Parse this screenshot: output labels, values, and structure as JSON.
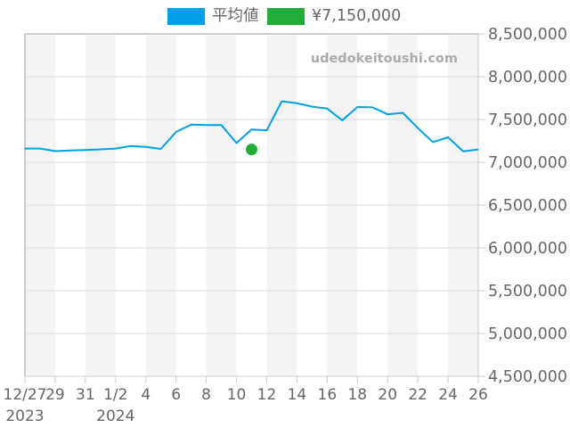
{
  "legend": {
    "items": [
      {
        "label": "平均値",
        "color": "#00A0E9"
      },
      {
        "label": "¥7,150,000",
        "color": "#22AC38"
      }
    ]
  },
  "watermark": "udedokeitoushi.com",
  "chart_data": {
    "type": "line",
    "title": "",
    "xlabel": "",
    "ylabel": "",
    "x": [
      "12/27",
      "12/28",
      "12/29",
      "12/30",
      "12/31",
      "1/1",
      "1/2",
      "1/3",
      "1/4",
      "1/5",
      "1/6",
      "1/7",
      "1/8",
      "1/9",
      "1/10",
      "1/11",
      "1/12",
      "1/13",
      "1/14",
      "1/15",
      "1/16",
      "1/17",
      "1/18",
      "1/19",
      "1/20",
      "1/21",
      "1/22",
      "1/23",
      "1/24",
      "1/25",
      "1/26"
    ],
    "x_tick_labels": [
      {
        "index": 0,
        "lines": [
          "12/27",
          "2023"
        ]
      },
      {
        "index": 2,
        "lines": [
          "29"
        ]
      },
      {
        "index": 4,
        "lines": [
          "31"
        ]
      },
      {
        "index": 6,
        "lines": [
          "1/2",
          "2024"
        ]
      },
      {
        "index": 8,
        "lines": [
          "4"
        ]
      },
      {
        "index": 10,
        "lines": [
          "6"
        ]
      },
      {
        "index": 12,
        "lines": [
          "8"
        ]
      },
      {
        "index": 14,
        "lines": [
          "10"
        ]
      },
      {
        "index": 16,
        "lines": [
          "12"
        ]
      },
      {
        "index": 18,
        "lines": [
          "14"
        ]
      },
      {
        "index": 20,
        "lines": [
          "16"
        ]
      },
      {
        "index": 22,
        "lines": [
          "18"
        ]
      },
      {
        "index": 24,
        "lines": [
          "20"
        ]
      },
      {
        "index": 26,
        "lines": [
          "22"
        ]
      },
      {
        "index": 28,
        "lines": [
          "24"
        ]
      },
      {
        "index": 30,
        "lines": [
          "26"
        ]
      }
    ],
    "series": [
      {
        "name": "平均値",
        "type": "line",
        "color": "#00A0E9",
        "values": [
          7160000,
          7160000,
          7130000,
          7137000,
          7144000,
          7151000,
          7160000,
          7190000,
          7180000,
          7156000,
          7355000,
          7440000,
          7434000,
          7434000,
          7225000,
          7382000,
          7374000,
          7712000,
          7690000,
          7650000,
          7628000,
          7490000,
          7646000,
          7642000,
          7560000,
          7578000,
          7400000,
          7236000,
          7292000,
          7128000,
          7150000
        ]
      },
      {
        "name": "¥7,150,000",
        "type": "scatter",
        "color": "#22AC38",
        "points": [
          {
            "x": "1/11",
            "index": 15,
            "y": 7150000
          }
        ]
      }
    ],
    "ylim": [
      4500000,
      8500000
    ],
    "y_ticks": [
      4500000,
      5000000,
      5500000,
      6000000,
      6500000,
      7000000,
      7500000,
      8000000,
      8500000
    ],
    "y_tick_labels": [
      "4,500,000",
      "5,000,000",
      "5,500,000",
      "6,000,000",
      "6,500,000",
      "7,000,000",
      "7,500,000",
      "8,000,000",
      "8,500,000"
    ],
    "yaxis_position": "right",
    "grid": true,
    "alternating_day_bands": true,
    "legend_position": "top"
  }
}
